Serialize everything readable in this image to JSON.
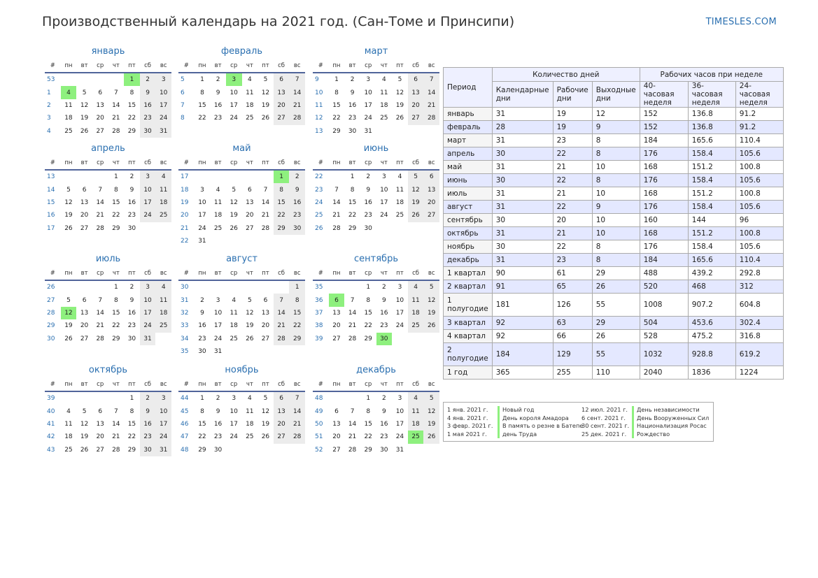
{
  "header": {
    "title": "Производственный календарь на 2021 год. (Сан-Томе и Принсипи)",
    "site": "TIMESLES.COM"
  },
  "calendar": {
    "weekday_header": [
      "#",
      "пн",
      "вт",
      "ср",
      "чт",
      "пт",
      "сб",
      "вс"
    ],
    "months": [
      {
        "name": "январь",
        "first_week": 53,
        "start_dow": 5,
        "days": 31,
        "holidays": [
          1,
          4
        ]
      },
      {
        "name": "февраль",
        "first_week": 5,
        "start_dow": 1,
        "days": 28,
        "holidays": [
          3
        ]
      },
      {
        "name": "март",
        "first_week": 9,
        "start_dow": 1,
        "days": 31,
        "holidays": []
      },
      {
        "name": "апрель",
        "first_week": 13,
        "start_dow": 4,
        "days": 30,
        "holidays": []
      },
      {
        "name": "май",
        "first_week": 17,
        "start_dow": 6,
        "days": 31,
        "holidays": [
          1
        ]
      },
      {
        "name": "июнь",
        "first_week": 22,
        "start_dow": 2,
        "days": 30,
        "holidays": []
      },
      {
        "name": "июль",
        "first_week": 26,
        "start_dow": 4,
        "days": 31,
        "holidays": [
          12
        ]
      },
      {
        "name": "август",
        "first_week": 30,
        "start_dow": 7,
        "days": 31,
        "holidays": []
      },
      {
        "name": "сентябрь",
        "first_week": 35,
        "start_dow": 3,
        "days": 30,
        "holidays": [
          6,
          30
        ]
      },
      {
        "name": "октябрь",
        "first_week": 39,
        "start_dow": 5,
        "days": 31,
        "holidays": []
      },
      {
        "name": "ноябрь",
        "first_week": 44,
        "start_dow": 1,
        "days": 30,
        "holidays": []
      },
      {
        "name": "декабрь",
        "first_week": 48,
        "start_dow": 3,
        "days": 31,
        "holidays": [
          25
        ]
      }
    ]
  },
  "summary": {
    "header": {
      "period": "Период",
      "days_group": "Количество дней",
      "hours_group": "Рабочих часов при неделе",
      "cols": [
        "Календарные дни",
        "Рабочие дни",
        "Выходные дни",
        "40-часовая неделя",
        "36-часовая неделя",
        "24-часовая неделя"
      ]
    },
    "rows": [
      {
        "period": "январь",
        "values": [
          "31",
          "19",
          "12",
          "152",
          "136.8",
          "91.2"
        ]
      },
      {
        "period": "февраль",
        "values": [
          "28",
          "19",
          "9",
          "152",
          "136.8",
          "91.2"
        ]
      },
      {
        "period": "март",
        "values": [
          "31",
          "23",
          "8",
          "184",
          "165.6",
          "110.4"
        ]
      },
      {
        "period": "апрель",
        "values": [
          "30",
          "22",
          "8",
          "176",
          "158.4",
          "105.6"
        ]
      },
      {
        "period": "май",
        "values": [
          "31",
          "21",
          "10",
          "168",
          "151.2",
          "100.8"
        ]
      },
      {
        "period": "июнь",
        "values": [
          "30",
          "22",
          "8",
          "176",
          "158.4",
          "105.6"
        ]
      },
      {
        "period": "июль",
        "values": [
          "31",
          "21",
          "10",
          "168",
          "151.2",
          "100.8"
        ]
      },
      {
        "period": "август",
        "values": [
          "31",
          "22",
          "9",
          "176",
          "158.4",
          "105.6"
        ]
      },
      {
        "period": "сентябрь",
        "values": [
          "30",
          "20",
          "10",
          "160",
          "144",
          "96"
        ]
      },
      {
        "period": "октябрь",
        "values": [
          "31",
          "21",
          "10",
          "168",
          "151.2",
          "100.8"
        ]
      },
      {
        "period": "ноябрь",
        "values": [
          "30",
          "22",
          "8",
          "176",
          "158.4",
          "105.6"
        ]
      },
      {
        "period": "декабрь",
        "values": [
          "31",
          "23",
          "8",
          "184",
          "165.6",
          "110.4"
        ]
      },
      {
        "period": "1 квартал",
        "values": [
          "90",
          "61",
          "29",
          "488",
          "439.2",
          "292.8"
        ]
      },
      {
        "period": "2 квартал",
        "values": [
          "91",
          "65",
          "26",
          "520",
          "468",
          "312"
        ]
      },
      {
        "period": "1 полугодие",
        "values": [
          "181",
          "126",
          "55",
          "1008",
          "907.2",
          "604.8"
        ]
      },
      {
        "period": "3 квартал",
        "values": [
          "92",
          "63",
          "29",
          "504",
          "453.6",
          "302.4"
        ]
      },
      {
        "period": "4 квартал",
        "values": [
          "92",
          "66",
          "26",
          "528",
          "475.2",
          "316.8"
        ]
      },
      {
        "period": "2 полугодие",
        "values": [
          "184",
          "129",
          "55",
          "1032",
          "928.8",
          "619.2"
        ]
      },
      {
        "period": "1 год",
        "values": [
          "365",
          "255",
          "110",
          "2040",
          "1836",
          "1224"
        ]
      }
    ]
  },
  "holidays": {
    "left": [
      {
        "date": "1 янв. 2021 г.",
        "name": "Новый год"
      },
      {
        "date": "4 янв. 2021 г.",
        "name": "День короля Амадора"
      },
      {
        "date": "3 февр. 2021 г.",
        "name": "В память о резне в Батепе"
      },
      {
        "date": "1 мая 2021 г.",
        "name": "день Труда"
      }
    ],
    "right": [
      {
        "date": "12 июл. 2021 г.",
        "name": "День независимости"
      },
      {
        "date": "6 сент. 2021 г.",
        "name": "День Вооруженных Сил"
      },
      {
        "date": "30 сент. 2021 г.",
        "name": "Национализация Росас"
      },
      {
        "date": "25 дек. 2021 г.",
        "name": "Рождество"
      }
    ]
  }
}
